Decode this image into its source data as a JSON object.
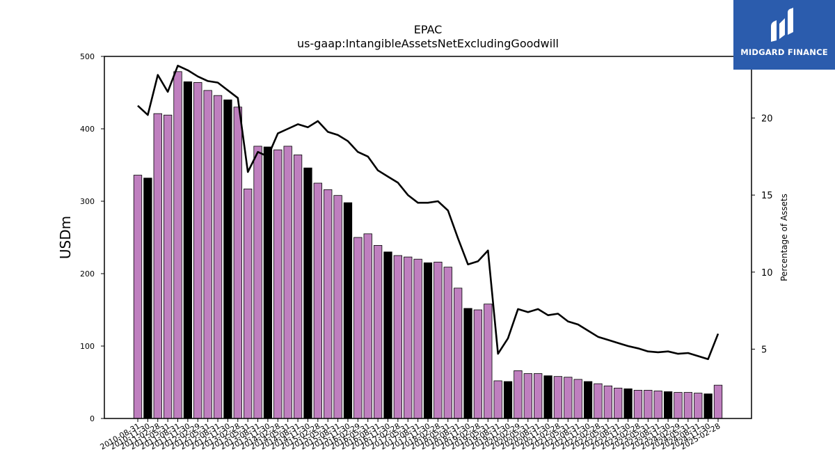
{
  "chart_data": {
    "type": "bar",
    "title": "EPAC",
    "subtitle": "us-gaap:IntangibleAssetsNetExcludingGoodwill",
    "ylabel": "USDm",
    "y2label": "Percentage of Assets",
    "ylim": [
      0,
      500
    ],
    "y2lim": [
      0.5,
      24
    ],
    "y_ticks": [
      0,
      100,
      200,
      300,
      400,
      500
    ],
    "y2_ticks": [
      5,
      10,
      15,
      20
    ],
    "categories": [
      "2010-08-31",
      "2010-11-30",
      "2011-02-28",
      "2011-05-31",
      "2011-08-31",
      "2011-11-30",
      "2012-02-29",
      "2012-05-31",
      "2012-08-31",
      "2012-11-30",
      "2013-02-28",
      "2013-05-31",
      "2013-08-31",
      "2013-11-30",
      "2014-02-28",
      "2014-05-31",
      "2014-08-31",
      "2014-11-30",
      "2015-02-28",
      "2015-05-31",
      "2015-08-31",
      "2015-11-30",
      "2016-02-29",
      "2016-05-31",
      "2016-08-31",
      "2016-11-30",
      "2017-02-28",
      "2017-05-31",
      "2017-08-31",
      "2017-11-30",
      "2018-02-28",
      "2018-05-31",
      "2018-08-31",
      "2018-11-30",
      "2019-02-28",
      "2019-05-31",
      "2019-08-31",
      "2019-11-30",
      "2020-02-29",
      "2020-05-31",
      "2020-08-31",
      "2020-11-30",
      "2021-02-28",
      "2021-05-31",
      "2021-08-31",
      "2021-11-30",
      "2022-02-28",
      "2022-05-31",
      "2022-08-31",
      "2022-11-30",
      "2023-02-28",
      "2023-05-31",
      "2023-08-31",
      "2023-11-30",
      "2024-02-29",
      "2024-05-31",
      "2024-08-31",
      "2024-11-30",
      "2025-02-28"
    ],
    "values": [
      336,
      332,
      421,
      419,
      479,
      465,
      464,
      453,
      446,
      440,
      430,
      317,
      376,
      375,
      371,
      376,
      364,
      346,
      325,
      316,
      308,
      298,
      250,
      255,
      239,
      230,
      225,
      223,
      220,
      215,
      216,
      209,
      180,
      152,
      150,
      158,
      52,
      51,
      66,
      62,
      62,
      59,
      58,
      57,
      54,
      51,
      48,
      45,
      42,
      41,
      39,
      39,
      38,
      37,
      36,
      36,
      35,
      34,
      46
    ],
    "fiscal_year_end": [
      false,
      true,
      false,
      false,
      false,
      true,
      false,
      false,
      false,
      true,
      false,
      false,
      false,
      true,
      false,
      false,
      false,
      true,
      false,
      false,
      false,
      true,
      false,
      false,
      false,
      true,
      false,
      false,
      false,
      true,
      false,
      false,
      false,
      true,
      false,
      false,
      false,
      true,
      false,
      false,
      false,
      true,
      false,
      false,
      false,
      true,
      false,
      false,
      false,
      true,
      false,
      false,
      false,
      true,
      false,
      false,
      false,
      true,
      false
    ],
    "line_series": {
      "name": "Percentage of Assets",
      "values": [
        20.8,
        20.2,
        22.8,
        21.7,
        23.4,
        23.1,
        22.7,
        22.4,
        22.3,
        21.8,
        21.3,
        16.5,
        17.8,
        17.5,
        19.0,
        19.3,
        19.6,
        19.4,
        19.8,
        19.1,
        18.9,
        18.5,
        17.8,
        17.5,
        16.6,
        16.2,
        15.8,
        15.0,
        14.5,
        14.5,
        14.6,
        14.0,
        12.2,
        10.5,
        10.7,
        11.4,
        4.7,
        5.7,
        7.6,
        7.4,
        7.6,
        7.2,
        7.3,
        6.8,
        6.6,
        6.2,
        5.8,
        5.6,
        5.4,
        5.2,
        5.05,
        4.85,
        4.8,
        4.85,
        4.7,
        4.75,
        4.55,
        4.35,
        6.0
      ]
    },
    "colors": {
      "bar": "#bf7fbf",
      "bar_fiscal": "#000000",
      "line": "#000000"
    },
    "grid": false
  },
  "brand": {
    "name": "MIDGARD FINANCE",
    "color": "#2b5cad"
  }
}
